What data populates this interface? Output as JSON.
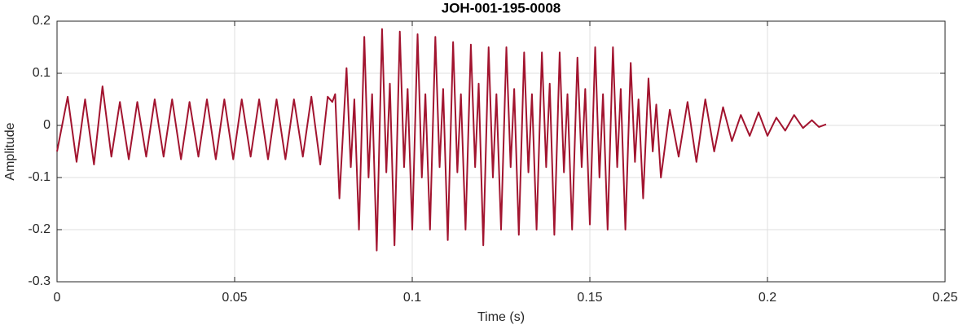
{
  "chart_data": {
    "type": "line",
    "title": "JOH-001-195-0008",
    "xlabel": "Time (s)",
    "ylabel": "Amplitude",
    "color": "#a2142f",
    "grid": true,
    "xlim": [
      0,
      0.25
    ],
    "xticks": [
      0,
      0.05,
      0.1,
      0.15,
      0.2,
      0.25
    ],
    "ylim": [
      -0.3,
      0.2
    ],
    "yticks": [
      -0.3,
      -0.2,
      -0.1,
      0,
      0.1,
      0.2
    ],
    "x": [
      0,
      0.003,
      0.0055,
      0.0079,
      0.0104,
      0.0128,
      0.0153,
      0.0177,
      0.0202,
      0.0226,
      0.0251,
      0.0275,
      0.03,
      0.0324,
      0.0349,
      0.0373,
      0.0398,
      0.0422,
      0.0447,
      0.0471,
      0.0496,
      0.052,
      0.0545,
      0.0569,
      0.0594,
      0.0618,
      0.0643,
      0.0667,
      0.0692,
      0.0716,
      0.0741,
      0.0762,
      0.0775,
      0.0783,
      0.0795,
      0.0815,
      0.0827,
      0.0837,
      0.085,
      0.0865,
      0.0877,
      0.0887,
      0.09,
      0.0915,
      0.0927,
      0.0937,
      0.095,
      0.0965,
      0.0977,
      0.0987,
      0.1,
      0.1015,
      0.1027,
      0.1037,
      0.105,
      0.1065,
      0.1077,
      0.1087,
      0.11,
      0.1115,
      0.1127,
      0.1137,
      0.115,
      0.1165,
      0.1177,
      0.1187,
      0.12,
      0.1215,
      0.1227,
      0.1237,
      0.125,
      0.1265,
      0.1277,
      0.1287,
      0.13,
      0.1315,
      0.1327,
      0.1337,
      0.135,
      0.1365,
      0.1377,
      0.1387,
      0.14,
      0.1415,
      0.1427,
      0.1437,
      0.145,
      0.1465,
      0.1477,
      0.1487,
      0.15,
      0.1515,
      0.1527,
      0.1537,
      0.155,
      0.1565,
      0.1577,
      0.1587,
      0.16,
      0.1615,
      0.1627,
      0.1637,
      0.165,
      0.1665,
      0.1677,
      0.1687,
      0.17,
      0.1725,
      0.175,
      0.1775,
      0.18,
      0.1825,
      0.185,
      0.1875,
      0.19,
      0.1925,
      0.195,
      0.1975,
      0.2,
      0.2025,
      0.205,
      0.2075,
      0.21,
      0.2125,
      0.2145,
      0.2165
    ],
    "values": [
      -0.05,
      0.055,
      -0.07,
      0.05,
      -0.075,
      0.075,
      -0.06,
      0.045,
      -0.065,
      0.045,
      -0.06,
      0.05,
      -0.06,
      0.05,
      -0.065,
      0.045,
      -0.06,
      0.05,
      -0.065,
      0.05,
      -0.065,
      0.05,
      -0.06,
      0.05,
      -0.065,
      0.05,
      -0.065,
      0.05,
      -0.06,
      0.055,
      -0.075,
      0.055,
      0.045,
      0.06,
      -0.14,
      0.11,
      -0.08,
      0.05,
      -0.2,
      0.17,
      -0.1,
      0.06,
      -0.24,
      0.185,
      -0.09,
      0.08,
      -0.23,
      0.18,
      -0.08,
      0.07,
      -0.2,
      0.175,
      -0.1,
      0.06,
      -0.2,
      0.17,
      -0.08,
      0.07,
      -0.22,
      0.16,
      -0.09,
      0.06,
      -0.2,
      0.155,
      -0.08,
      0.08,
      -0.23,
      0.15,
      -0.1,
      0.06,
      -0.2,
      0.15,
      -0.08,
      0.07,
      -0.21,
      0.14,
      -0.09,
      0.06,
      -0.2,
      0.14,
      -0.08,
      0.08,
      -0.21,
      0.14,
      -0.09,
      0.06,
      -0.2,
      0.13,
      -0.08,
      0.07,
      -0.19,
      0.15,
      -0.1,
      0.06,
      -0.2,
      0.15,
      -0.08,
      0.07,
      -0.2,
      0.12,
      -0.07,
      0.05,
      -0.14,
      0.09,
      -0.05,
      0.04,
      -0.1,
      0.03,
      -0.06,
      0.045,
      -0.07,
      0.05,
      -0.05,
      0.035,
      -0.03,
      0.02,
      -0.02,
      0.025,
      -0.02,
      0.015,
      -0.01,
      0.02,
      -0.005,
      0.01,
      -0.003,
      0.002
    ]
  }
}
